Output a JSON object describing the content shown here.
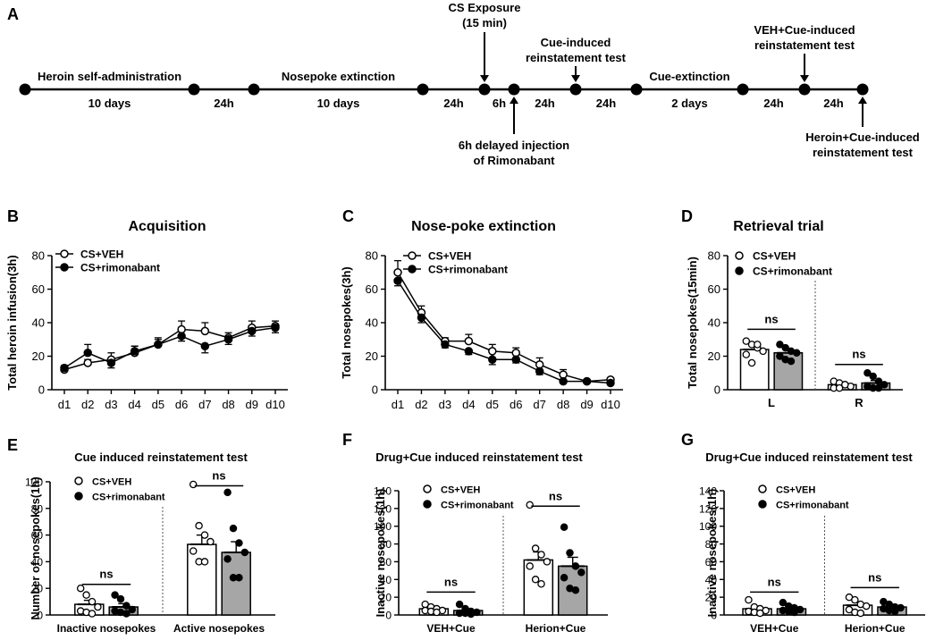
{
  "panel_letters": [
    "A",
    "B",
    "C",
    "D",
    "E",
    "F",
    "G"
  ],
  "timeline": {
    "segments": [
      {
        "label": "Heroin self-administration",
        "sub": "10 days"
      },
      {
        "label": "",
        "sub": "24h"
      },
      {
        "label": "Nosepoke extinction",
        "sub": "10 days"
      },
      {
        "label": "",
        "sub": "24h"
      },
      {
        "label": "",
        "sub": "6h"
      },
      {
        "label": "",
        "sub": "24h"
      },
      {
        "label": "",
        "sub": "24h"
      },
      {
        "label": "Cue-extinction",
        "sub": "2 days"
      },
      {
        "label": "",
        "sub": "24h"
      },
      {
        "label": "",
        "sub": "24h"
      }
    ],
    "annotations": {
      "cs_exposure": [
        "CS Exposure",
        "(15 min)"
      ],
      "cue_test": [
        "Cue-induced",
        "reinstatement test"
      ],
      "veh_cue_test": [
        "VEH+Cue-induced",
        "reinstatement test"
      ],
      "delayed_injection": [
        "6h delayed injection",
        "of Rimonabant"
      ],
      "heroin_cue_test": [
        "Heroin+Cue-induced",
        "reinstatement test"
      ]
    }
  },
  "chart_data": [
    {
      "id": "B",
      "type": "line",
      "title": "Acquisition",
      "ylabel": "Total heroin infusion(3h)",
      "xlabel": "",
      "ylim": [
        0,
        80
      ],
      "yticks": [
        0,
        20,
        40,
        60,
        80
      ],
      "categories": [
        "d1",
        "d2",
        "d3",
        "d4",
        "d5",
        "d6",
        "d7",
        "d8",
        "d9",
        "d10"
      ],
      "legend": [
        "CS+VEH",
        "CS+rimonabant"
      ],
      "series": [
        {
          "name": "CS+VEH",
          "values": [
            12,
            16,
            18,
            22,
            27,
            36,
            35,
            31,
            37,
            38
          ],
          "errors": [
            1.5,
            2,
            4,
            4,
            4,
            5,
            5,
            3,
            4,
            3
          ]
        },
        {
          "name": "CS+rimonabant",
          "values": [
            13,
            22,
            16,
            23,
            27,
            32,
            26,
            30,
            35,
            37
          ],
          "errors": [
            1.5,
            5,
            3,
            3,
            3,
            3,
            4,
            3,
            3,
            3
          ]
        }
      ]
    },
    {
      "id": "C",
      "type": "line",
      "title": "Nose-poke extinction",
      "ylabel": "Total nosepokes(3h)",
      "xlabel": "",
      "ylim": [
        0,
        80
      ],
      "yticks": [
        0,
        20,
        40,
        60,
        80
      ],
      "categories": [
        "d1",
        "d2",
        "d3",
        "d4",
        "d5",
        "d6",
        "d7",
        "d8",
        "d9",
        "d10"
      ],
      "legend": [
        "CS+VEH",
        "CS+rimonabant"
      ],
      "series": [
        {
          "name": "CS+VEH",
          "values": [
            70,
            46,
            29,
            29,
            23,
            22,
            15,
            9,
            5,
            6
          ],
          "errors": [
            7,
            4,
            2,
            4,
            4,
            3,
            4,
            3,
            1,
            1
          ]
        },
        {
          "name": "CS+rimonabant",
          "values": [
            65,
            43,
            27,
            23,
            18,
            18,
            11,
            5,
            5,
            4
          ],
          "errors": [
            3,
            3,
            2,
            2,
            3,
            2,
            2,
            1,
            1,
            1
          ]
        }
      ]
    },
    {
      "id": "D",
      "type": "bar",
      "title": "Retrieval trial",
      "ylabel": "Total nosepokes(15min)",
      "xlabel": "",
      "ylim": [
        0,
        80
      ],
      "yticks": [
        0,
        20,
        40,
        60,
        80
      ],
      "categories": [
        "L",
        "R"
      ],
      "legend": [
        "CS+VEH",
        "CS+rimonabant"
      ],
      "significance": [
        "ns",
        "ns"
      ],
      "series": [
        {
          "name": "CS+VEH",
          "values": [
            24,
            3
          ],
          "errors": [
            2.5,
            1
          ],
          "points": [
            [
              29,
              27,
              25,
              23,
              21,
              16,
              27
            ],
            [
              5,
              4,
              3,
              2,
              1,
              1,
              3
            ]
          ]
        },
        {
          "name": "CS+rimonabant",
          "values": [
            22,
            4
          ],
          "errors": [
            2,
            1.5
          ],
          "points": [
            [
              27,
              25,
              23,
              22,
              20,
              18,
              17
            ],
            [
              10,
              8,
              5,
              3,
              2,
              1,
              1
            ]
          ]
        }
      ]
    },
    {
      "id": "E",
      "type": "bar",
      "title": "Cue induced reinstatement test",
      "ylabel": "Number of nosepokes(1h)",
      "xlabel": "",
      "ylim": [
        0,
        100
      ],
      "yticks": [
        0,
        20,
        40,
        60,
        80,
        100
      ],
      "categories": [
        "Inactive nosepokes",
        "Active nosepokes"
      ],
      "legend": [
        "CS+VEH",
        "CS+rimonabant"
      ],
      "significance": [
        "ns",
        "ns"
      ],
      "series": [
        {
          "name": "CS+VEH",
          "values": [
            8,
            53
          ],
          "errors": [
            3,
            7
          ],
          "points": [
            [
              20,
              15,
              10,
              6,
              3,
              2,
              1
            ],
            [
              98,
              67,
              60,
              55,
              48,
              40,
              40
            ]
          ]
        },
        {
          "name": "CS+rimonabant",
          "values": [
            6,
            47
          ],
          "errors": [
            2.5,
            8
          ],
          "points": [
            [
              15,
              12,
              7,
              4,
              3,
              2,
              1
            ],
            [
              92,
              65,
              54,
              47,
              42,
              28,
              28
            ]
          ]
        }
      ]
    },
    {
      "id": "F",
      "type": "bar",
      "title": "Drug+Cue induced reinstatement test",
      "ylabel": "Inactive nosepokes(1h)",
      "xlabel": "",
      "ylim": [
        0,
        140
      ],
      "yticks": [
        0,
        20,
        40,
        60,
        80,
        100,
        120,
        140
      ],
      "categories": [
        "VEH+Cue",
        "Herion+Cue"
      ],
      "legend": [
        "CS+VEH",
        "CS+rimonabant"
      ],
      "significance": [
        "ns",
        "ns"
      ],
      "series": [
        {
          "name": "CS+VEH",
          "values": [
            7,
            62
          ],
          "errors": [
            2,
            9
          ],
          "points": [
            [
              12,
              9,
              7,
              5,
              5,
              4,
              3
            ],
            [
              124,
              75,
              68,
              60,
              55,
              40,
              35
            ]
          ]
        },
        {
          "name": "CS+rimonabant",
          "values": [
            5,
            55
          ],
          "errors": [
            1.5,
            10
          ],
          "points": [
            [
              12,
              7,
              4,
              3,
              2,
              2,
              1
            ],
            [
              99,
              70,
              55,
              48,
              42,
              30,
              28
            ]
          ]
        }
      ]
    },
    {
      "id": "G",
      "type": "bar",
      "title": "Drug+Cue induced reinstatement test",
      "ylabel": "Inactive nosepokes(1h)",
      "xlabel": "",
      "ylim": [
        0,
        140
      ],
      "yticks": [
        0,
        20,
        40,
        60,
        80,
        100,
        120,
        140
      ],
      "categories": [
        "VEH+Cue",
        "Herion+Cue"
      ],
      "legend": [
        "CS+VEH",
        "CS+rimonabant"
      ],
      "significance": [
        "ns",
        "ns"
      ],
      "series": [
        {
          "name": "CS+VEH",
          "values": [
            7,
            11
          ],
          "errors": [
            2,
            3
          ],
          "points": [
            [
              17,
              9,
              7,
              5,
              4,
              3,
              2
            ],
            [
              20,
              17,
              12,
              10,
              6,
              3,
              2
            ]
          ]
        },
        {
          "name": "CS+rimonabant",
          "values": [
            7,
            9
          ],
          "errors": [
            2,
            2
          ],
          "points": [
            [
              14,
              10,
              8,
              6,
              5,
              4,
              3
            ],
            [
              15,
              12,
              9,
              8,
              7,
              5,
              4
            ]
          ]
        }
      ]
    }
  ]
}
